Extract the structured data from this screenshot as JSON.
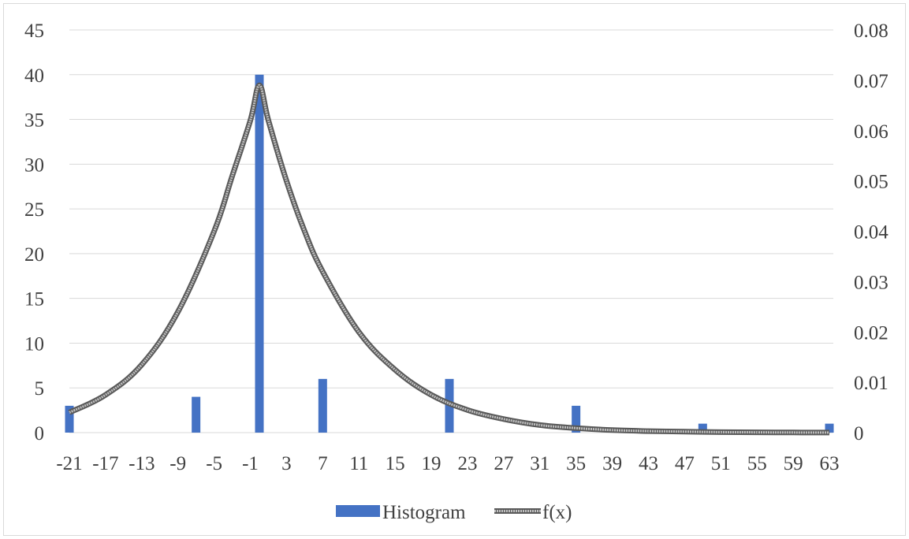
{
  "chart_data": {
    "type": "bar",
    "x_categories": [
      -21,
      -17,
      -13,
      -9,
      -5,
      -1,
      3,
      7,
      11,
      15,
      19,
      23,
      27,
      31,
      35,
      39,
      43,
      47,
      51,
      55,
      59,
      63
    ],
    "x_tick_labels": [
      "-21",
      "-17",
      "-13",
      "-9",
      "-5",
      "-1",
      "3",
      "7",
      "11",
      "15",
      "19",
      "23",
      "27",
      "31",
      "35",
      "39",
      "43",
      "47",
      "51",
      "55",
      "59",
      "63"
    ],
    "y_left": {
      "ylim": [
        0,
        45
      ],
      "ticks": [
        "0",
        "5",
        "10",
        "15",
        "20",
        "25",
        "30",
        "35",
        "40",
        "45"
      ]
    },
    "y_right": {
      "ylim": [
        0,
        0.08
      ],
      "ticks": [
        "0",
        "0.01",
        "0.02",
        "0.03",
        "0.04",
        "0.05",
        "0.06",
        "0.07",
        "0.08"
      ]
    },
    "grid": true,
    "legend_position": "bottom",
    "series": [
      {
        "name": "Histogram",
        "type": "bar",
        "axis": "left",
        "color": "#4472c4",
        "points": [
          {
            "x": -21,
            "y": 3
          },
          {
            "x": -7,
            "y": 4
          },
          {
            "x": 0,
            "y": 40
          },
          {
            "x": 7,
            "y": 6
          },
          {
            "x": 21,
            "y": 6
          },
          {
            "x": 35,
            "y": 3
          },
          {
            "x": 49,
            "y": 1
          },
          {
            "x": 63,
            "y": 1
          }
        ]
      },
      {
        "name": "f(x)",
        "type": "line",
        "axis": "right",
        "color": "#808080",
        "points": [
          {
            "x": -21,
            "y": 0.004
          },
          {
            "x": -17,
            "y": 0.0075
          },
          {
            "x": -13,
            "y": 0.0135
          },
          {
            "x": -9,
            "y": 0.024
          },
          {
            "x": -5,
            "y": 0.04
          },
          {
            "x": -3,
            "y": 0.051
          },
          {
            "x": -1,
            "y": 0.062
          },
          {
            "x": 0,
            "y": 0.069
          },
          {
            "x": 1,
            "y": 0.062
          },
          {
            "x": 3,
            "y": 0.05
          },
          {
            "x": 5,
            "y": 0.04
          },
          {
            "x": 7,
            "y": 0.032
          },
          {
            "x": 11,
            "y": 0.02
          },
          {
            "x": 15,
            "y": 0.0125
          },
          {
            "x": 19,
            "y": 0.0075
          },
          {
            "x": 23,
            "y": 0.0045
          },
          {
            "x": 27,
            "y": 0.0027
          },
          {
            "x": 31,
            "y": 0.0015
          },
          {
            "x": 35,
            "y": 0.0009
          },
          {
            "x": 39,
            "y": 0.0005
          },
          {
            "x": 43,
            "y": 0.0003
          },
          {
            "x": 47,
            "y": 0.0002
          },
          {
            "x": 51,
            "y": 0.0001
          },
          {
            "x": 55,
            "y": 6e-05
          },
          {
            "x": 59,
            "y": 3e-05
          },
          {
            "x": 63,
            "y": 2e-05
          }
        ]
      }
    ]
  },
  "legend": {
    "histogram_label": "Histogram",
    "fx_label": "f(x)"
  }
}
